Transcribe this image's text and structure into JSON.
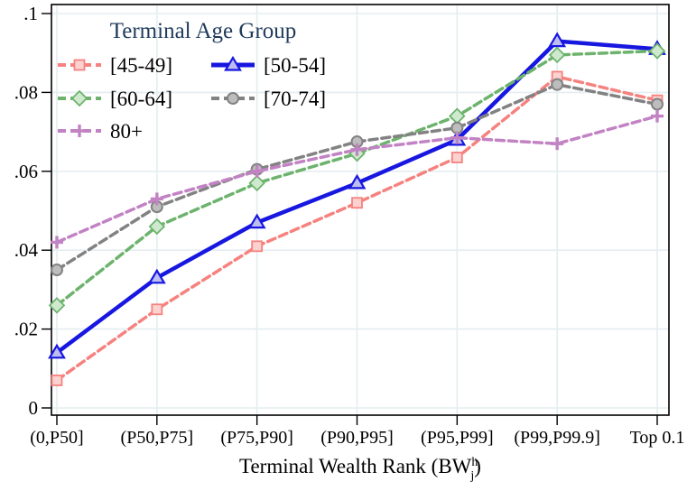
{
  "chart_data": {
    "type": "line",
    "legend_title": "Terminal Age Group",
    "categories": [
      "(0,P50]",
      "(P50,P75]",
      "(P75,P90]",
      "(P90,P95]",
      "(P95,P99]",
      "(P99,P99.9]",
      "Top 0.1"
    ],
    "series": [
      {
        "name": "[45-49]",
        "color": "#f5827f",
        "marker_fill": "#fbd2d0",
        "marker": "square",
        "dash": "9 5",
        "width": 3.5,
        "values": [
          0.007,
          0.025,
          0.041,
          0.052,
          0.0635,
          0.084,
          0.078
        ]
      },
      {
        "name": "[50-54]",
        "color": "#1717e0",
        "marker_fill": "#bdbdf2",
        "marker": "triangle",
        "dash": "",
        "width": 4.5,
        "values": [
          0.014,
          0.033,
          0.047,
          0.057,
          0.068,
          0.093,
          0.091
        ]
      },
      {
        "name": "[60-64]",
        "color": "#6db36d",
        "marker_fill": "#cfe9cf",
        "marker": "diamond",
        "dash": "9 5",
        "width": 3.5,
        "values": [
          0.026,
          0.046,
          0.057,
          0.0645,
          0.074,
          0.0895,
          0.0905
        ]
      },
      {
        "name": "[70-74]",
        "color": "#828282",
        "marker_fill": "#bdbdbd",
        "marker": "circle",
        "dash": "9 5",
        "width": 3.5,
        "values": [
          0.035,
          0.051,
          0.0605,
          0.0675,
          0.071,
          0.082,
          0.077
        ]
      },
      {
        "name": "80+",
        "color": "#c283c4",
        "marker_fill": "#c283c4",
        "marker": "plus",
        "dash": "9 5",
        "width": 3.5,
        "values": [
          0.042,
          0.053,
          0.06,
          0.0655,
          0.0685,
          0.067,
          0.074
        ]
      }
    ],
    "ylim": [
      0,
      0.1
    ],
    "yticks": [
      {
        "v": 0,
        "label": "0"
      },
      {
        "v": 0.02,
        "label": ".02"
      },
      {
        "v": 0.04,
        "label": ".04"
      },
      {
        "v": 0.06,
        "label": ".06"
      },
      {
        "v": 0.08,
        "label": ".08"
      },
      {
        "v": 0.1,
        "label": ".1"
      }
    ],
    "xlabel_parts": {
      "pre": "Terminal Wealth Rank (BW",
      "sup": "h",
      "sub": "j",
      "post": ")"
    },
    "grid": true,
    "legend_position": "top-left-inside"
  },
  "colors": {
    "legend_title": "#1f3a5c",
    "gridline": "#e4edf0",
    "axis": "#000000",
    "tick_label": "#000000",
    "background": "#ffffff"
  }
}
